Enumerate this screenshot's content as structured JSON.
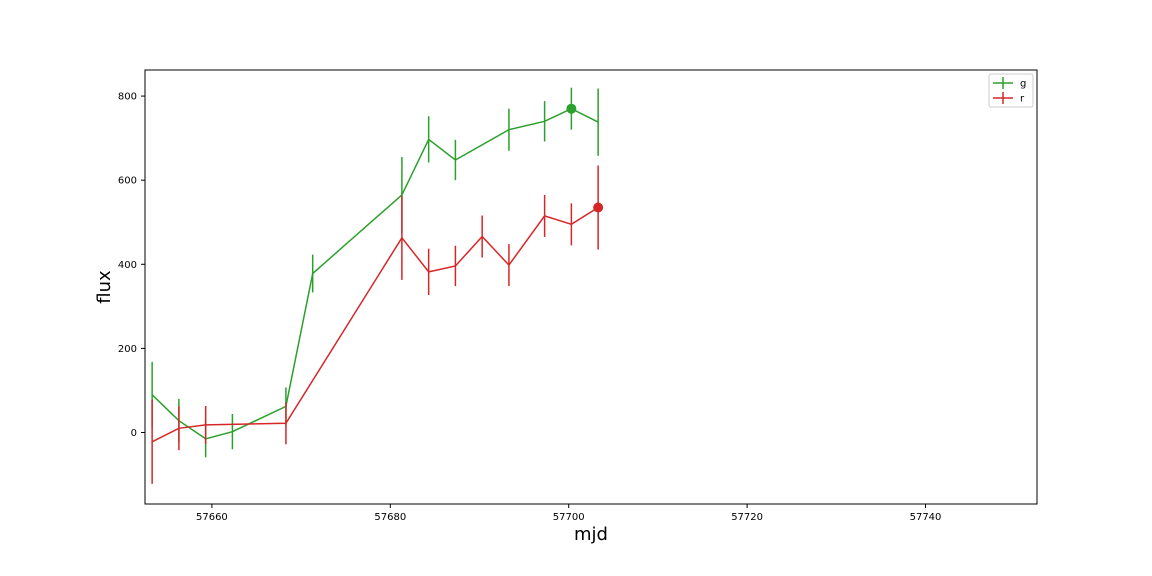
{
  "chart_data": {
    "type": "line",
    "title": "",
    "xlabel": "mjd",
    "ylabel": "flux",
    "xlim": [
      57652.5,
      57752.5
    ],
    "ylim": [
      -170,
      862
    ],
    "xticks": [
      57660,
      57680,
      57700,
      57720,
      57740
    ],
    "yticks": [
      0,
      200,
      400,
      600,
      800
    ],
    "grid": false,
    "legend_position": "top-right",
    "series": [
      {
        "name": "g",
        "color": "#2ca02c",
        "x": [
          57653.3,
          57656.3,
          57659.3,
          57662.3,
          57668.3,
          57671.3,
          57681.3,
          57684.3,
          57687.3,
          57693.3,
          57697.3,
          57700.3,
          57703.3
        ],
        "y": [
          90,
          28,
          -15,
          2,
          62,
          378,
          565,
          697,
          648,
          720,
          740,
          770,
          738
        ],
        "err": [
          78,
          52,
          44,
          42,
          45,
          45,
          90,
          55,
          48,
          50,
          48,
          50,
          80
        ],
        "marker": {
          "x": 57700.3,
          "y": 770
        }
      },
      {
        "name": "r",
        "color": "#d62728",
        "x": [
          57653.3,
          57656.3,
          57659.3,
          57668.3,
          57681.3,
          57684.3,
          57687.3,
          57690.3,
          57693.3,
          57697.3,
          57700.3,
          57703.3
        ],
        "y": [
          -22,
          10,
          18,
          22,
          463,
          382,
          396,
          466,
          398,
          515,
          495,
          535
        ],
        "err": [
          100,
          52,
          45,
          50,
          100,
          55,
          48,
          50,
          50,
          50,
          50,
          100
        ],
        "marker": {
          "x": 57703.3,
          "y": 535
        }
      }
    ]
  }
}
